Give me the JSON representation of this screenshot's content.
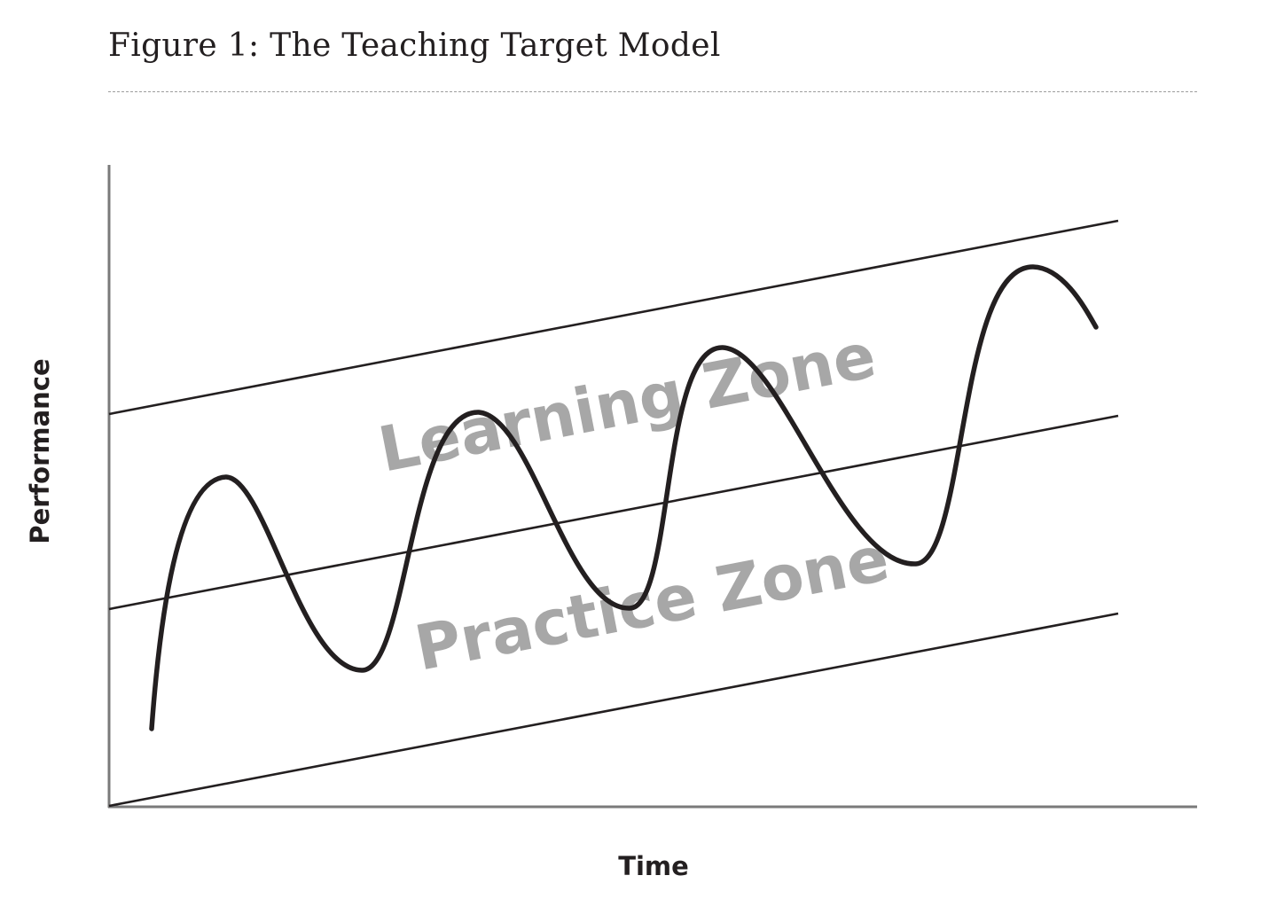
{
  "figure": {
    "title": "Figure 1: The Teaching Target Model"
  },
  "axes": {
    "x_label": "Time",
    "y_label": "Performance"
  },
  "zones": {
    "upper_label": "Learning Zone",
    "lower_label": "Practice Zone"
  },
  "colors": {
    "lines": "#231f20",
    "axes": "#7a7a7a",
    "zone_text": "#a7a7a7",
    "divider": "#9d9d9d"
  }
}
